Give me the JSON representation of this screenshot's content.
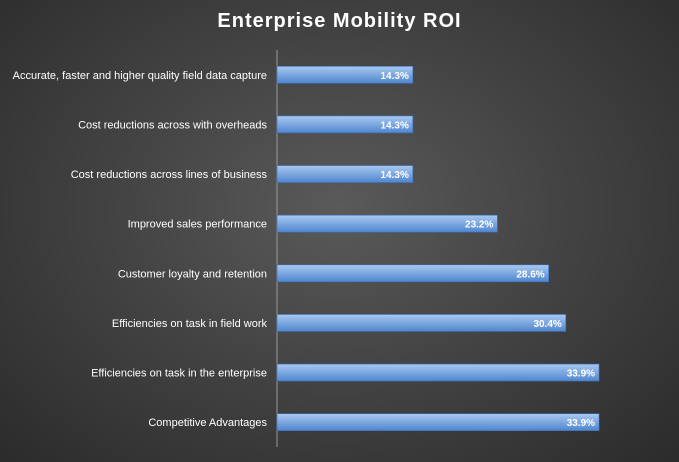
{
  "chart_data": {
    "type": "bar",
    "orientation": "horizontal",
    "title": "Enterprise Mobility ROI",
    "categories": [
      "Accurate, faster and higher quality field data capture",
      "Cost reductions across with overheads",
      "Cost reductions across lines of business",
      "Improved sales performance",
      "Customer loyalty and retention",
      "Efficiencies on task in field work",
      "Efficiencies on task in the enterprise",
      "Competitive Advantages"
    ],
    "values": [
      14.3,
      14.3,
      14.3,
      23.2,
      28.6,
      30.4,
      33.9,
      33.9
    ],
    "data_labels": [
      "14.3%",
      "14.3%",
      "14.3%",
      "23.2%",
      "28.6%",
      "30.4%",
      "33.9%",
      "33.9%"
    ],
    "xlim": [
      0,
      40
    ],
    "grid": false,
    "legend": "none",
    "colors": {
      "bar_top": "#a9c8f0",
      "bar_bottom": "#4f86cf",
      "bar_edge": "#3a6fb8",
      "text": "#ffffff",
      "axis": "#9a9a9a"
    }
  }
}
